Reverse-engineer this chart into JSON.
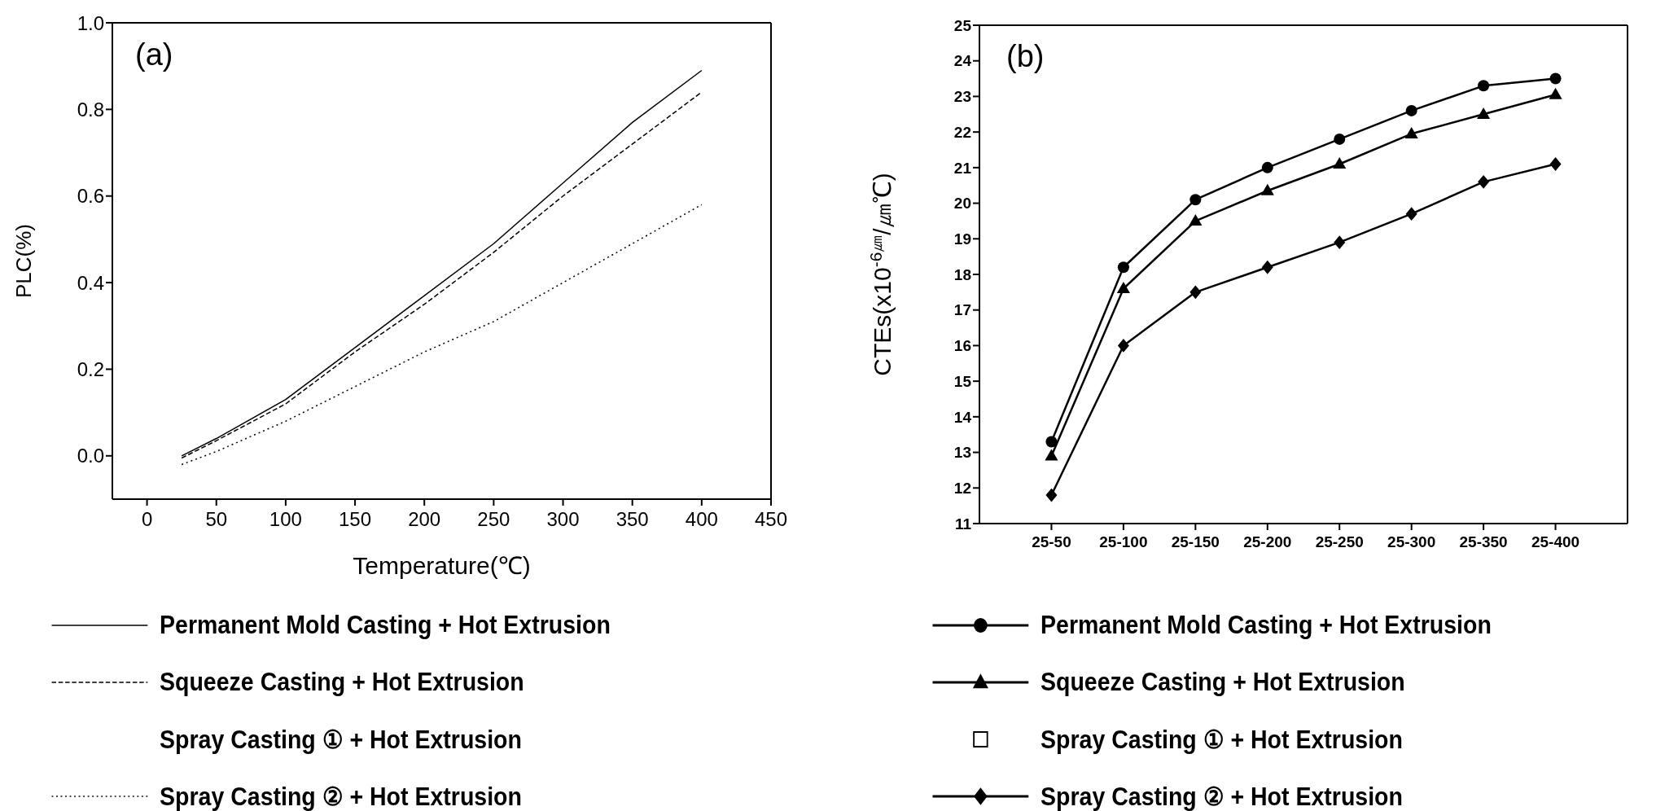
{
  "chart_data": [
    {
      "type": "line",
      "title": "(a)",
      "xlabel": "Temperature(℃)",
      "ylabel": "PLC(%)",
      "x": [
        25,
        50,
        100,
        150,
        200,
        250,
        300,
        350,
        400
      ],
      "xlim": [
        -25,
        450
      ],
      "xticks": [
        0,
        50,
        100,
        150,
        200,
        250,
        300,
        350,
        400,
        450
      ],
      "ylim": [
        -0.1,
        1.0
      ],
      "yticks": [
        {
          "value": 0,
          "label": "0.0"
        },
        0.2,
        0.4,
        0.6,
        0.8,
        {
          "value": 1,
          "label": "1.0"
        }
      ],
      "grid": false,
      "legend": "bottom",
      "series": [
        {
          "name": "Permanent Mold Casting + Hot Extrusion",
          "color": "#000000",
          "line_style": "solid",
          "values": [
            0.0,
            0.04,
            0.13,
            0.25,
            0.37,
            0.49,
            0.63,
            0.77,
            0.89
          ]
        },
        {
          "name": "Squeeze Casting + Hot Extrusion",
          "color": "#000000",
          "line_style": "dashed",
          "values": [
            -0.005,
            0.035,
            0.12,
            0.24,
            0.35,
            0.47,
            0.6,
            0.72,
            0.84
          ]
        },
        {
          "name": "Spray Casting ① + Hot Extrusion",
          "color": "#000000",
          "line_style": "none",
          "values": [
            null,
            null,
            null,
            null,
            null,
            null,
            null,
            null,
            null
          ]
        },
        {
          "name": "Spray Casting ② + Hot Extrusion",
          "color": "#000000",
          "line_style": "dotted",
          "values": [
            -0.02,
            0.01,
            0.08,
            0.16,
            0.24,
            0.31,
            0.4,
            0.49,
            0.58
          ]
        }
      ]
    },
    {
      "type": "line",
      "title": "(b)",
      "ylabel": "CTEs(x10$^{-6㎛}$/㎛℃)",
      "categories": [
        "25-50",
        "25-100",
        "25-150",
        "25-200",
        "25-250",
        "25-300",
        "25-350",
        "25-400"
      ],
      "ylim": [
        11,
        25
      ],
      "yticks": [
        11,
        12,
        13,
        14,
        15,
        16,
        17,
        18,
        19,
        20,
        21,
        22,
        23,
        24,
        25
      ],
      "grid": false,
      "legend": "bottom",
      "series": [
        {
          "name": "Permanent Mold Casting + Hot Extrusion",
          "color": "#000000",
          "line_style": "solid",
          "marker": "circle",
          "values": [
            13.3,
            18.2,
            20.1,
            21.0,
            21.8,
            22.6,
            23.3,
            23.5
          ]
        },
        {
          "name": "Squeeze Casting + Hot Extrusion",
          "color": "#000000",
          "line_style": "solid",
          "marker": "triangle",
          "values": [
            12.9,
            17.6,
            19.5,
            20.35,
            21.1,
            21.95,
            22.5,
            23.05
          ]
        },
        {
          "name": "Spray Casting ① + Hot Extrusion",
          "color": "#000000",
          "line_style": "none",
          "marker": "square",
          "values": [
            null,
            null,
            null,
            null,
            null,
            null,
            null,
            null
          ]
        },
        {
          "name": "Spray Casting ② + Hot Extrusion",
          "color": "#000000",
          "line_style": "solid",
          "marker": "diamond",
          "values": [
            11.8,
            16.0,
            17.5,
            18.2,
            18.9,
            19.7,
            20.6,
            21.1
          ]
        }
      ]
    }
  ]
}
